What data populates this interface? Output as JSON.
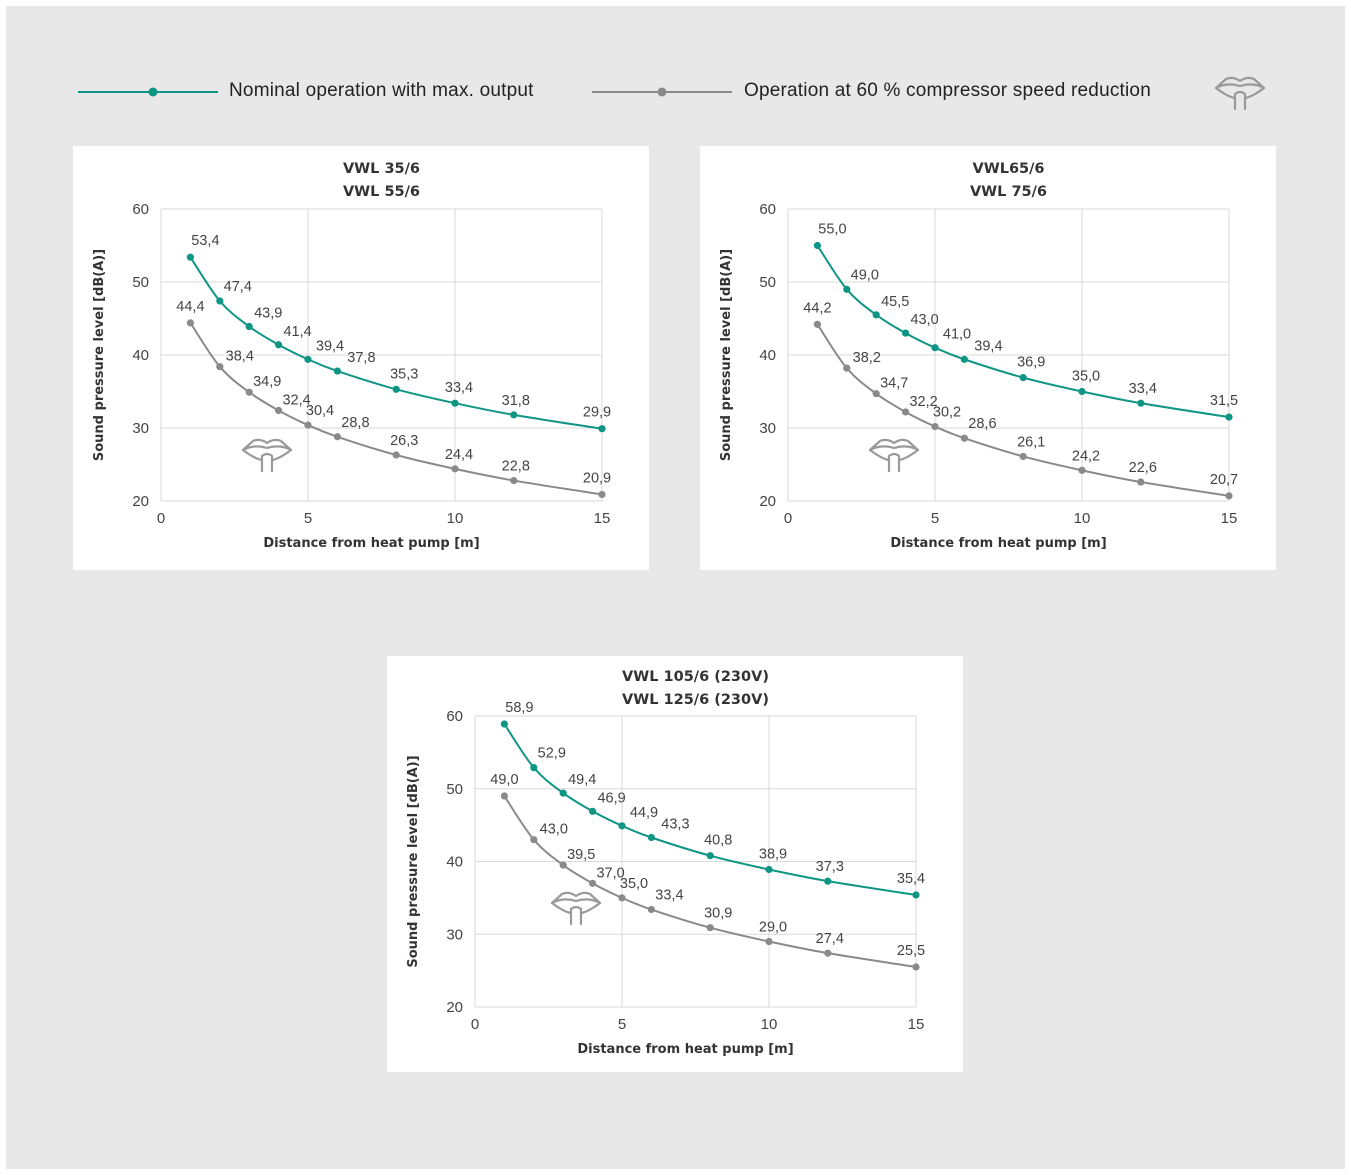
{
  "legend": {
    "series1_label": "Nominal operation with max. output",
    "series2_label": "Operation at 60 % compressor speed reduction",
    "icon": "mouth-speech-icon"
  },
  "colors": {
    "background": "#e8e8e8",
    "panel": "#ffffff",
    "series1": "#0f9584",
    "series2": "#8a8a8a",
    "grid": "#d9d9d9",
    "icon": "#9a9a9a"
  },
  "chart_data": [
    {
      "type": "line",
      "title": [
        "VWL 35/6",
        "VWL 55/6"
      ],
      "xlabel": "Distance from heat pump  [m]",
      "ylabel": "Sound pressure level  [dB(A)]",
      "xlim": [
        0,
        15
      ],
      "ylim": [
        20,
        60
      ],
      "xticks": [
        0,
        5,
        10,
        15
      ],
      "yticks": [
        20,
        30,
        40,
        50,
        60
      ],
      "grid": true,
      "x": [
        1,
        2,
        3,
        4,
        5,
        6,
        8,
        10,
        12,
        15
      ],
      "series": [
        {
          "name": "Nominal operation with max. output",
          "values": [
            53.4,
            47.4,
            43.9,
            41.4,
            39.4,
            37.8,
            35.3,
            33.4,
            31.8,
            29.9
          ],
          "labels": [
            "53,4",
            "47,4",
            "43,9",
            "41,4",
            "39,4",
            "37,8",
            "35,3",
            "33,4",
            "31,8",
            "29,9"
          ]
        },
        {
          "name": "Operation at 60 % compressor speed reduction",
          "values": [
            44.4,
            38.4,
            34.9,
            32.4,
            30.4,
            28.8,
            26.3,
            24.4,
            22.8,
            20.9
          ],
          "labels": [
            "44,4",
            "38,4",
            "34,9",
            "32,4",
            "30,4",
            "28,8",
            "26,3",
            "24,4",
            "22,8",
            "20,9"
          ]
        }
      ]
    },
    {
      "type": "line",
      "title": [
        "VWL65/6",
        "VWL 75/6"
      ],
      "xlabel": "Distance from heat pump  [m]",
      "ylabel": "Sound pressure level  [dB(A)]",
      "xlim": [
        0,
        15
      ],
      "ylim": [
        20,
        60
      ],
      "xticks": [
        0,
        5,
        10,
        15
      ],
      "yticks": [
        20,
        30,
        40,
        50,
        60
      ],
      "grid": true,
      "x": [
        1,
        2,
        3,
        4,
        5,
        6,
        8,
        10,
        12,
        15
      ],
      "series": [
        {
          "name": "Nominal operation with max. output",
          "values": [
            55.0,
            49.0,
            45.5,
            43.0,
            41.0,
            39.4,
            36.9,
            35.0,
            33.4,
            31.5
          ],
          "labels": [
            "55,0",
            "49,0",
            "45,5",
            "43,0",
            "41,0",
            "39,4",
            "36,9",
            "35,0",
            "33,4",
            "31,5"
          ]
        },
        {
          "name": "Operation at 60 % compressor speed reduction",
          "values": [
            44.2,
            38.2,
            34.7,
            32.2,
            30.2,
            28.6,
            26.1,
            24.2,
            22.6,
            20.7
          ],
          "labels": [
            "44,2",
            "38,2",
            "34,7",
            "32,2",
            "30,2",
            "28,6",
            "26,1",
            "24,2",
            "22,6",
            "20,7"
          ]
        }
      ]
    },
    {
      "type": "line",
      "title": [
        "VWL 105/6 (230V)",
        "VWL 125/6 (230V)"
      ],
      "xlabel": "Distance from heat pump  [m]",
      "ylabel": "Sound pressure level  [dB(A)]",
      "xlim": [
        0,
        15
      ],
      "ylim": [
        20,
        60
      ],
      "xticks": [
        0,
        5,
        10,
        15
      ],
      "yticks": [
        20,
        30,
        40,
        50,
        60
      ],
      "grid": true,
      "x": [
        1,
        2,
        3,
        4,
        5,
        6,
        8,
        10,
        12,
        15
      ],
      "series": [
        {
          "name": "Nominal operation with max. output",
          "values": [
            58.9,
            52.9,
            49.4,
            46.9,
            44.9,
            43.3,
            40.8,
            38.9,
            37.3,
            35.4
          ],
          "labels": [
            "58,9",
            "52,9",
            "49,4",
            "46,9",
            "44,9",
            "43,3",
            "40,8",
            "38,9",
            "37,3",
            "35,4"
          ]
        },
        {
          "name": "Operation at 60 % compressor speed reduction",
          "values": [
            49.0,
            43.0,
            39.5,
            37.0,
            35.0,
            33.4,
            30.9,
            29.0,
            27.4,
            25.5
          ],
          "labels": [
            "49,0",
            "43,0",
            "39,5",
            "37,0",
            "35,0",
            "33,4",
            "30,9",
            "29,0",
            "27,4",
            "25,5"
          ]
        }
      ]
    }
  ]
}
